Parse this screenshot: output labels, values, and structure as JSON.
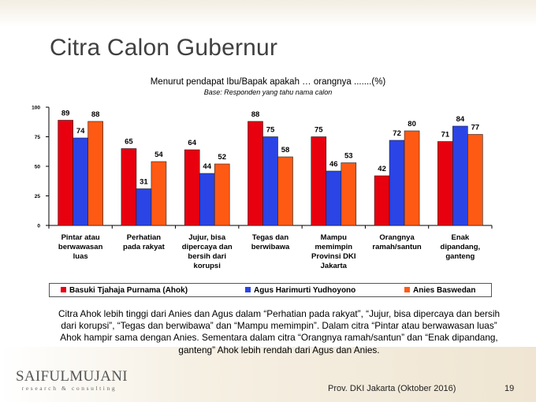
{
  "slide": {
    "title": "Citra Calon Gubernur",
    "summary": "Citra Ahok lebih tinggi dari Anies dan Agus dalam “Perhatian pada rakyat”, “Jujur, bisa dipercaya dan bersih dari korupsi”, “Tegas dan berwibawa” dan “Mampu memimpin”. Dalam citra “Pintar atau berwawasan luas” Ahok hampir sama dengan Anies. Sementara dalam citra “Orangnya ramah/santun” dan “Enak dipandang, ganteng” Ahok lebih rendah dari Agus dan Anies.",
    "footer": "Prov. DKI Jakarta (Oktober 2016)",
    "page_number": "19"
  },
  "logo": {
    "name": "SAIFULMUJANI",
    "tagline": "research & consulting"
  },
  "chart_data": {
    "type": "bar",
    "title": "Menurut pendapat Ibu/Bapak apakah … orangnya .......(%)",
    "subtitle": "Base: Responden yang tahu nama calon",
    "xlabel": "",
    "ylabel": "",
    "ylim": [
      0,
      100
    ],
    "yticks": [
      0,
      25,
      50,
      75,
      100
    ],
    "grid": false,
    "legend_position": "bottom",
    "categories": [
      [
        "Pintar atau",
        "berwawasan",
        "luas"
      ],
      [
        "Perhatian",
        "pada rakyat"
      ],
      [
        "Jujur, bisa",
        "dipercaya dan",
        "bersih dari",
        "korupsi"
      ],
      [
        "Tegas dan",
        "berwibawa"
      ],
      [
        "Mampu",
        "memimpin",
        "Provinsi DKI",
        "Jakarta"
      ],
      [
        "Orangnya",
        "ramah/santun"
      ],
      [
        "Enak",
        "dipandang,",
        "ganteng"
      ]
    ],
    "series": [
      {
        "name": "Basuki Tjahaja Purnama (Ahok)",
        "color": "#e8000f",
        "values": [
          89,
          65,
          64,
          88,
          75,
          42,
          71
        ]
      },
      {
        "name": "Agus Harimurti Yudhoyono",
        "color": "#2a44e6",
        "values": [
          74,
          31,
          44,
          75,
          46,
          72,
          84
        ]
      },
      {
        "name": "Anies Baswedan",
        "color": "#ff5a14",
        "values": [
          88,
          54,
          52,
          58,
          53,
          80,
          77
        ]
      }
    ]
  }
}
